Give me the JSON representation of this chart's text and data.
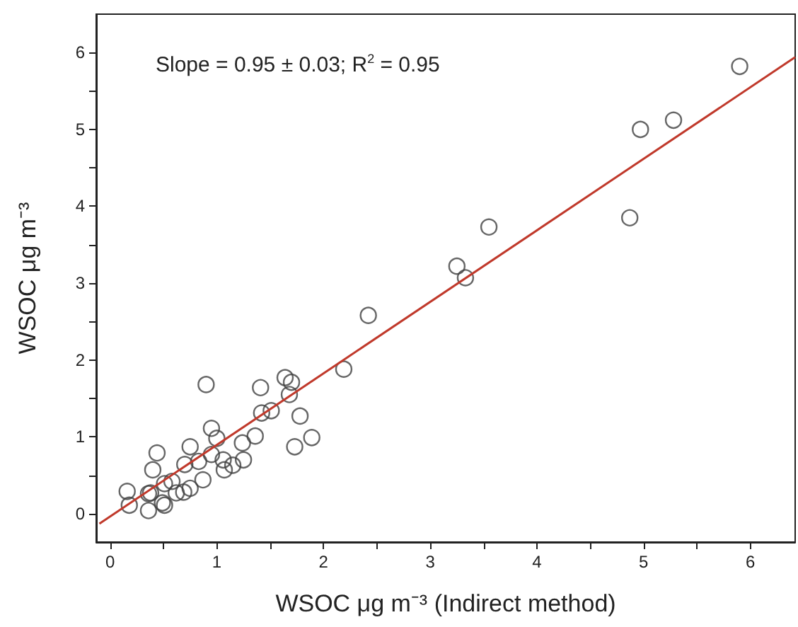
{
  "chart_data": {
    "type": "scatter",
    "xlabel": "WSOC μg m⁻³ (Indirect method)",
    "ylabel": "WSOC μg m⁻³",
    "annotations": [
      "Slope = 0.95 ± 0.03; R$^{2}$ = 0.95"
    ],
    "xlim": [
      -0.13,
      6.42
    ],
    "ylim": [
      -0.37,
      6.5
    ],
    "xticks": [
      0,
      {
        "value": 0.5,
        "label": null
      },
      1,
      {
        "value": 1.5,
        "label": null
      },
      2,
      {
        "value": 2.5,
        "label": null
      },
      3,
      {
        "value": 3.5,
        "label": null
      },
      4,
      {
        "value": 4.5,
        "label": null
      },
      5,
      {
        "value": 5.5,
        "label": null
      },
      6
    ],
    "yticks": [
      0,
      {
        "value": 0.5,
        "label": null
      },
      1,
      {
        "value": 1.5,
        "label": null
      },
      2,
      {
        "value": 2.5,
        "label": null
      },
      3,
      {
        "value": 3.5,
        "label": null
      },
      4,
      {
        "value": 4.5,
        "label": null
      },
      5,
      {
        "value": 5.5,
        "label": null
      },
      6
    ],
    "grid": false,
    "series": [
      {
        "marker": "circle",
        "color": "#404040",
        "x": [
          0.16,
          0.18,
          0.36,
          0.38,
          0.36,
          0.51,
          0.49,
          0.44,
          0.4,
          0.51,
          0.58,
          0.62,
          0.69,
          0.75,
          0.7,
          0.75,
          0.83,
          0.87,
          0.9,
          0.95,
          1.0,
          0.95,
          1.06,
          1.07,
          1.15,
          1.24,
          1.25,
          1.36,
          1.41,
          1.42,
          1.51,
          1.64,
          1.7,
          1.68,
          1.78,
          1.73,
          1.89,
          2.19,
          2.42,
          3.25,
          3.33,
          3.55,
          4.87,
          4.97,
          5.28,
          5.9
        ],
        "values": [
          0.29,
          0.11,
          0.26,
          0.27,
          0.04,
          0.11,
          0.14,
          0.79,
          0.57,
          0.39,
          0.42,
          0.27,
          0.28,
          0.33,
          0.64,
          0.87,
          0.68,
          0.44,
          1.68,
          1.11,
          0.98,
          0.77,
          0.7,
          0.57,
          0.63,
          0.92,
          0.7,
          1.01,
          1.64,
          1.31,
          1.34,
          1.77,
          1.71,
          1.55,
          1.27,
          0.87,
          0.99,
          1.88,
          2.58,
          3.22,
          3.07,
          3.73,
          3.85,
          5.0,
          5.12,
          5.82
        ]
      },
      {
        "type": "line",
        "marker": "none",
        "line_style": "solid",
        "color": "#c0392b",
        "x": [
          -0.1,
          6.42
        ],
        "values": [
          -0.13,
          5.94
        ]
      }
    ]
  }
}
